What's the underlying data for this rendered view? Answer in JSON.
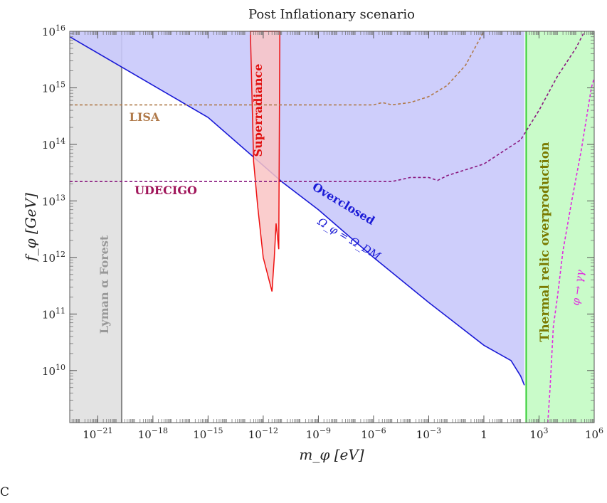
{
  "chart_data": {
    "type": "area",
    "title": "Post Inflationary scenario",
    "xlabel": "m_φ [eV]",
    "ylabel": "f_φ [GeV]",
    "x_scale": "log",
    "y_scale": "log",
    "xlim": [
      3e-23,
      1000000.0
    ],
    "ylim": [
      1200000000.0,
      1e+16
    ],
    "x_ticks": [
      {
        "value": 1e-21,
        "label": "10^-21"
      },
      {
        "value": 1e-18,
        "label": "10^-18"
      },
      {
        "value": 1e-15,
        "label": "10^-15"
      },
      {
        "value": 1e-12,
        "label": "10^-12"
      },
      {
        "value": 1e-09,
        "label": "10^-9"
      },
      {
        "value": 1e-06,
        "label": "10^-6"
      },
      {
        "value": 0.001,
        "label": "10^-3"
      },
      {
        "value": 1,
        "label": "1"
      },
      {
        "value": 1000.0,
        "label": "10^3"
      },
      {
        "value": 1000000.0,
        "label": "10^6"
      }
    ],
    "y_ticks": [
      {
        "value": 10000000000.0,
        "label": "10^10"
      },
      {
        "value": 100000000000.0,
        "label": "10^11"
      },
      {
        "value": 1000000000000.0,
        "label": "10^12"
      },
      {
        "value": 10000000000000.0,
        "label": "10^13"
      },
      {
        "value": 100000000000000.0,
        "label": "10^14"
      },
      {
        "value": 1000000000000000.0,
        "label": "10^15"
      },
      {
        "value": 1e+16,
        "label": "10^16"
      }
    ],
    "regions": [
      {
        "name": "Lyman α Forest",
        "color": "#e3e3e3",
        "edge_color": "#888888",
        "x_range": [
          3e-23,
          2e-20
        ]
      },
      {
        "name": "Overclosed",
        "color": "#c9c9fb",
        "edge_color": "#1a1ad6",
        "boundary_label": "Ω_φ = Ω_DM",
        "boundary": [
          [
            3e-23,
            8000000000000000.0
          ],
          [
            1e-15,
            300000000000000.0
          ],
          [
            1e-11,
            22000000000000.0
          ],
          [
            1e-09,
            7000000000000.0
          ],
          [
            1e-06,
            1000000000000.0
          ],
          [
            0.001,
            160000000000.0
          ],
          [
            1,
            28000000000.0
          ],
          [
            30,
            15000000000.0
          ],
          [
            100,
            8000000000.0
          ],
          [
            160,
            5500000000.0
          ]
        ]
      },
      {
        "name": "Superradiance",
        "color": "#f9c4c4",
        "edge_color": "#ee1111",
        "boundary": [
          [
            2e-13,
            1e+16
          ],
          [
            3e-13,
            50000000000000.0
          ],
          [
            5e-13,
            8000000000000.0
          ],
          [
            1e-12,
            1000000000000.0
          ],
          [
            3e-12,
            250000000000.0
          ],
          [
            4e-12,
            1000000000000.0
          ],
          [
            5e-12,
            4000000000000.0
          ],
          [
            7e-12,
            1400000000000.0
          ],
          [
            8e-12,
            1e+16
          ]
        ]
      },
      {
        "name": "Thermal relic overproduction",
        "color": "#c9fbc9",
        "edge_color": "#33cc33",
        "label_color": "#7a7a00",
        "x_range": [
          200,
          1000000.0
        ]
      }
    ],
    "series": [
      {
        "name": "LISA",
        "color": "#b07a4a",
        "style": "dashed",
        "points": [
          [
            3e-23,
            500000000000000.0
          ],
          [
            1e-06,
            500000000000000.0
          ],
          [
            3e-06,
            550000000000000.0
          ],
          [
            1e-05,
            500000000000000.0
          ],
          [
            0.0001,
            550000000000000.0
          ],
          [
            0.001,
            700000000000000.0
          ],
          [
            0.01,
            1100000000000000.0
          ],
          [
            0.1,
            2500000000000000.0
          ],
          [
            1,
            1e+16
          ]
        ]
      },
      {
        "name": "UDECIGO",
        "color": "#8b1a80",
        "style": "dashed",
        "points": [
          [
            3e-23,
            22000000000000.0
          ],
          [
            1e-05,
            22000000000000.0
          ],
          [
            0.0001,
            26000000000000.0
          ],
          [
            0.001,
            26000000000000.0
          ],
          [
            0.003,
            23000000000000.0
          ],
          [
            0.01,
            28000000000000.0
          ],
          [
            1,
            45000000000000.0
          ],
          [
            100.0,
            120000000000000.0
          ],
          [
            1000.0,
            400000000000000.0
          ],
          [
            10000.0,
            1600000000000000.0
          ],
          [
            100000.0,
            5000000000000000.0
          ],
          [
            300000.0,
            1e+16
          ]
        ]
      },
      {
        "name": "φ → γγ",
        "color": "#e02ae0",
        "style": "dashed",
        "points": [
          [
            3000.0,
            1200000000.0
          ],
          [
            4000.0,
            5000000000.0
          ],
          [
            6000.0,
            60000000000.0
          ],
          [
            10000.0,
            200000000000.0
          ],
          [
            20000.0,
            1300000000000.0
          ],
          [
            60000.0,
            10000000000000.0
          ],
          [
            200000.0,
            80000000000000.0
          ],
          [
            700000.0,
            1000000000000000.0
          ],
          [
            1000000.0,
            1500000000000000.0
          ]
        ]
      }
    ],
    "annotations": [
      "LISA",
      "UDECIGO",
      "Superradiance",
      "Overclosed",
      "Ω_φ = Ω_DM",
      "Lyman α Forest",
      "Thermal relic overproduction",
      "φ → γγ"
    ],
    "grid": false,
    "legend": "none"
  },
  "caption": "C"
}
